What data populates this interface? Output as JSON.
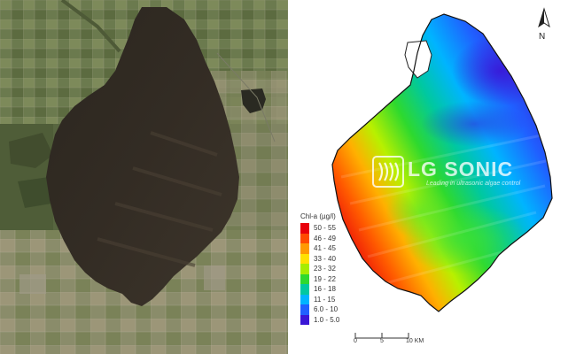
{
  "satellite": {
    "label": "Satellite true-colour image of the lake"
  },
  "chl_map": {
    "north_label": "N",
    "watermark": {
      "brand": "LG SONIC",
      "tagline": "Leading in ultrasonic algae control"
    },
    "legend": {
      "title": "Chl-a (µg/l)",
      "classes": [
        {
          "label": "50 - 55",
          "color": "#e8000b"
        },
        {
          "label": "46 - 49",
          "color": "#ff4a00"
        },
        {
          "label": "41 - 45",
          "color": "#ff9900"
        },
        {
          "label": "33 - 40",
          "color": "#ffe000"
        },
        {
          "label": "23 - 32",
          "color": "#a6ec00"
        },
        {
          "label": "19 - 22",
          "color": "#2ed92e"
        },
        {
          "label": "16 - 18",
          "color": "#00c8a0"
        },
        {
          "label": "11 - 15",
          "color": "#00b4ff"
        },
        {
          "label": "6.0 - 10",
          "color": "#2060ff"
        },
        {
          "label": "1.0 - 5.0",
          "color": "#3a16d6"
        }
      ]
    },
    "scale": {
      "ticks": [
        "0",
        "5",
        "10 KM"
      ]
    }
  }
}
